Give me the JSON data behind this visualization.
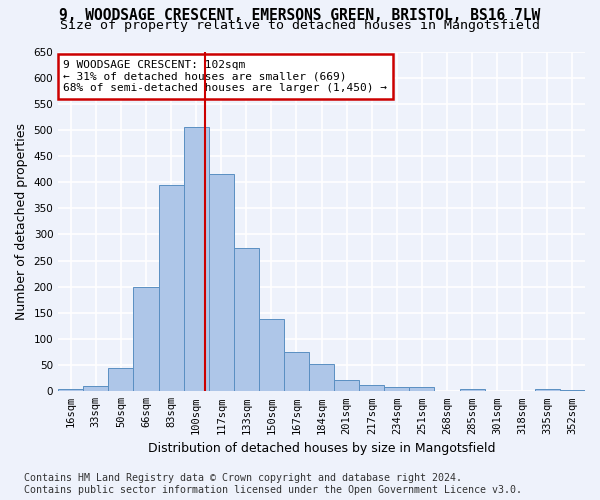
{
  "title_line1": "9, WOODSAGE CRESCENT, EMERSONS GREEN, BRISTOL, BS16 7LW",
  "title_line2": "Size of property relative to detached houses in Mangotsfield",
  "xlabel": "Distribution of detached houses by size in Mangotsfield",
  "ylabel": "Number of detached properties",
  "footnote": "Contains HM Land Registry data © Crown copyright and database right 2024.\nContains public sector information licensed under the Open Government Licence v3.0.",
  "categories": [
    "16sqm",
    "33sqm",
    "50sqm",
    "66sqm",
    "83sqm",
    "100sqm",
    "117sqm",
    "133sqm",
    "150sqm",
    "167sqm",
    "184sqm",
    "201sqm",
    "217sqm",
    "234sqm",
    "251sqm",
    "268sqm",
    "285sqm",
    "301sqm",
    "318sqm",
    "335sqm",
    "352sqm"
  ],
  "values": [
    5,
    10,
    45,
    200,
    395,
    505,
    415,
    275,
    138,
    75,
    52,
    22,
    12,
    8,
    8,
    0,
    5,
    0,
    0,
    5,
    3
  ],
  "bar_color": "#aec6e8",
  "bar_edge_color": "#5a8fc2",
  "vline_x_index": 5.35,
  "annotation_text": "9 WOODSAGE CRESCENT: 102sqm\n← 31% of detached houses are smaller (669)\n68% of semi-detached houses are larger (1,450) →",
  "annotation_box_color": "#ffffff",
  "annotation_box_edge_color": "#cc0000",
  "vline_color": "#cc0000",
  "ylim": [
    0,
    650
  ],
  "yticks": [
    0,
    50,
    100,
    150,
    200,
    250,
    300,
    350,
    400,
    450,
    500,
    550,
    600,
    650
  ],
  "background_color": "#eef2fb",
  "grid_color": "#ffffff",
  "title_fontsize": 10.5,
  "subtitle_fontsize": 9.5,
  "axis_label_fontsize": 9,
  "tick_fontsize": 7.5,
  "footnote_fontsize": 7.2
}
